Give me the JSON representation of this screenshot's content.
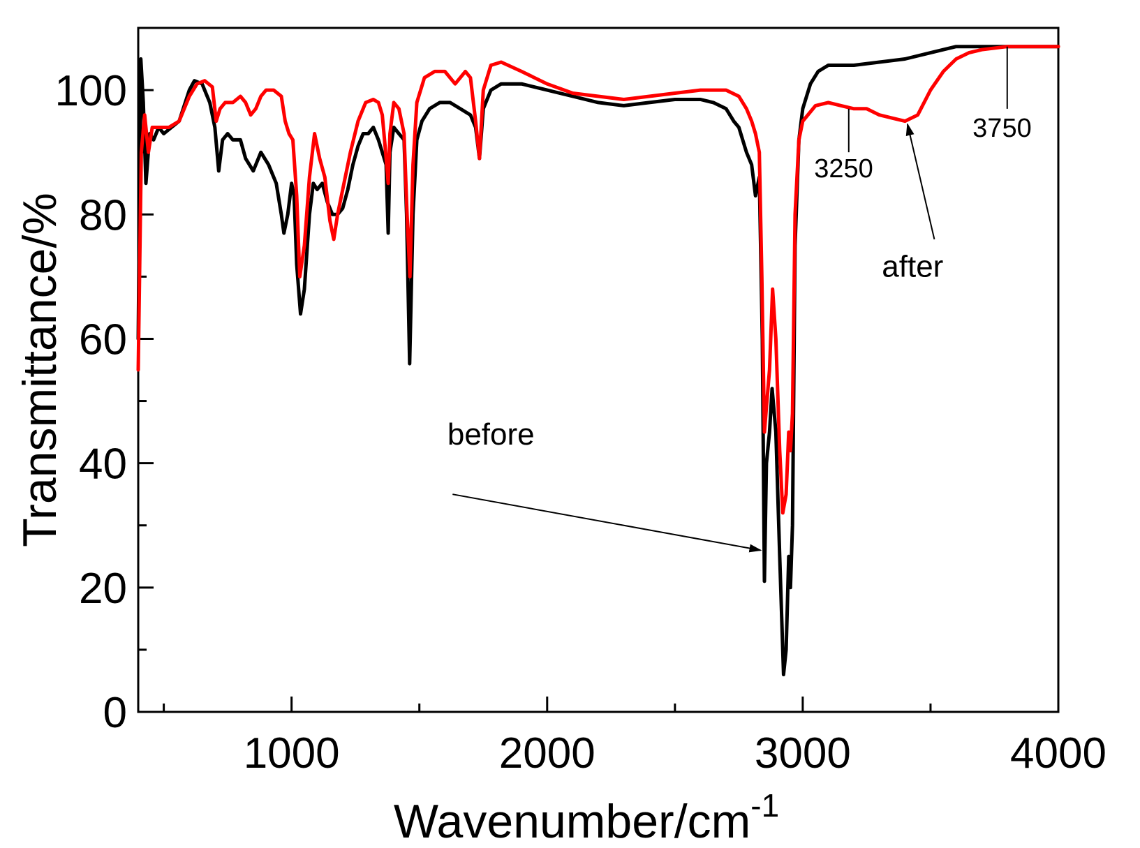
{
  "chart_data": {
    "type": "line",
    "xlabel": "Wavenumber/cm",
    "xlabel_superscript": "-1",
    "ylabel": "Transmittance/%",
    "xlim": [
      400,
      4000
    ],
    "ylim": [
      0,
      110
    ],
    "x_ticks": [
      1000,
      2000,
      3000,
      4000
    ],
    "y_ticks": [
      0,
      20,
      40,
      60,
      80,
      100
    ],
    "grid": false,
    "series": [
      {
        "name": "before",
        "color": "#000000",
        "points": [
          [
            400,
            60
          ],
          [
            410,
            105
          ],
          [
            420,
            98
          ],
          [
            430,
            85
          ],
          [
            445,
            93
          ],
          [
            460,
            92
          ],
          [
            480,
            94
          ],
          [
            500,
            93
          ],
          [
            530,
            94
          ],
          [
            560,
            95
          ],
          [
            600,
            100
          ],
          [
            620,
            101.5
          ],
          [
            650,
            101
          ],
          [
            680,
            98
          ],
          [
            700,
            94
          ],
          [
            715,
            87
          ],
          [
            730,
            92
          ],
          [
            750,
            93
          ],
          [
            770,
            92
          ],
          [
            800,
            92
          ],
          [
            820,
            89
          ],
          [
            850,
            87
          ],
          [
            880,
            90
          ],
          [
            910,
            88
          ],
          [
            940,
            85
          ],
          [
            960,
            80
          ],
          [
            970,
            77
          ],
          [
            985,
            80
          ],
          [
            1000,
            85
          ],
          [
            1010,
            83
          ],
          [
            1020,
            72
          ],
          [
            1035,
            64
          ],
          [
            1050,
            68
          ],
          [
            1070,
            80
          ],
          [
            1085,
            85
          ],
          [
            1100,
            84
          ],
          [
            1120,
            85
          ],
          [
            1140,
            82
          ],
          [
            1160,
            80
          ],
          [
            1180,
            80
          ],
          [
            1200,
            81
          ],
          [
            1220,
            84
          ],
          [
            1240,
            88
          ],
          [
            1260,
            91
          ],
          [
            1280,
            93
          ],
          [
            1300,
            93
          ],
          [
            1320,
            94
          ],
          [
            1340,
            92
          ],
          [
            1355,
            90
          ],
          [
            1370,
            88
          ],
          [
            1378,
            77
          ],
          [
            1385,
            90
          ],
          [
            1400,
            94
          ],
          [
            1420,
            93
          ],
          [
            1440,
            92
          ],
          [
            1450,
            80
          ],
          [
            1462,
            56
          ],
          [
            1475,
            80
          ],
          [
            1490,
            92
          ],
          [
            1510,
            95
          ],
          [
            1540,
            97
          ],
          [
            1580,
            98
          ],
          [
            1620,
            98
          ],
          [
            1660,
            97
          ],
          [
            1700,
            96
          ],
          [
            1720,
            94
          ],
          [
            1735,
            89
          ],
          [
            1750,
            97
          ],
          [
            1780,
            100
          ],
          [
            1820,
            101
          ],
          [
            1900,
            101
          ],
          [
            2000,
            100
          ],
          [
            2100,
            99
          ],
          [
            2200,
            98
          ],
          [
            2300,
            97.5
          ],
          [
            2400,
            98
          ],
          [
            2500,
            98.5
          ],
          [
            2600,
            98.5
          ],
          [
            2650,
            98
          ],
          [
            2700,
            97
          ],
          [
            2730,
            95
          ],
          [
            2750,
            94
          ],
          [
            2780,
            90
          ],
          [
            2800,
            88
          ],
          [
            2815,
            83
          ],
          [
            2830,
            86
          ],
          [
            2842,
            60
          ],
          [
            2850,
            21
          ],
          [
            2858,
            40
          ],
          [
            2870,
            45
          ],
          [
            2880,
            52
          ],
          [
            2895,
            45
          ],
          [
            2910,
            25
          ],
          [
            2925,
            6
          ],
          [
            2935,
            10
          ],
          [
            2945,
            25
          ],
          [
            2952,
            20
          ],
          [
            2960,
            30
          ],
          [
            2970,
            75
          ],
          [
            2985,
            92
          ],
          [
            3000,
            97
          ],
          [
            3030,
            101
          ],
          [
            3060,
            103
          ],
          [
            3100,
            104
          ],
          [
            3150,
            104
          ],
          [
            3200,
            104
          ],
          [
            3300,
            104.5
          ],
          [
            3400,
            105
          ],
          [
            3500,
            106
          ],
          [
            3600,
            107
          ],
          [
            3700,
            107
          ],
          [
            3800,
            107
          ],
          [
            3900,
            107
          ],
          [
            4000,
            107
          ]
        ]
      },
      {
        "name": "after",
        "color": "#ff0000",
        "points": [
          [
            400,
            55
          ],
          [
            412,
            90
          ],
          [
            425,
            96
          ],
          [
            440,
            90
          ],
          [
            455,
            94
          ],
          [
            480,
            94
          ],
          [
            520,
            94
          ],
          [
            560,
            95
          ],
          [
            600,
            99
          ],
          [
            630,
            101
          ],
          [
            660,
            101.5
          ],
          [
            690,
            100.5
          ],
          [
            705,
            95
          ],
          [
            720,
            97
          ],
          [
            740,
            98
          ],
          [
            770,
            98
          ],
          [
            800,
            99
          ],
          [
            820,
            98
          ],
          [
            840,
            96
          ],
          [
            860,
            97
          ],
          [
            880,
            99
          ],
          [
            900,
            100
          ],
          [
            930,
            100
          ],
          [
            960,
            99
          ],
          [
            975,
            95
          ],
          [
            990,
            93
          ],
          [
            1005,
            92
          ],
          [
            1020,
            83
          ],
          [
            1032,
            70
          ],
          [
            1050,
            75
          ],
          [
            1070,
            86
          ],
          [
            1090,
            93
          ],
          [
            1110,
            89
          ],
          [
            1130,
            86
          ],
          [
            1150,
            79
          ],
          [
            1165,
            76
          ],
          [
            1180,
            80
          ],
          [
            1200,
            84
          ],
          [
            1230,
            90
          ],
          [
            1260,
            95
          ],
          [
            1290,
            98
          ],
          [
            1320,
            98.5
          ],
          [
            1340,
            98
          ],
          [
            1355,
            96
          ],
          [
            1368,
            90
          ],
          [
            1378,
            85
          ],
          [
            1385,
            93
          ],
          [
            1400,
            98
          ],
          [
            1420,
            97
          ],
          [
            1440,
            93
          ],
          [
            1452,
            80
          ],
          [
            1463,
            70
          ],
          [
            1475,
            88
          ],
          [
            1490,
            98
          ],
          [
            1520,
            102
          ],
          [
            1560,
            103
          ],
          [
            1600,
            103
          ],
          [
            1640,
            101
          ],
          [
            1680,
            103
          ],
          [
            1700,
            102
          ],
          [
            1720,
            95
          ],
          [
            1735,
            89
          ],
          [
            1750,
            100
          ],
          [
            1780,
            104
          ],
          [
            1820,
            104.5
          ],
          [
            1900,
            103
          ],
          [
            2000,
            101
          ],
          [
            2100,
            99.5
          ],
          [
            2200,
            99
          ],
          [
            2300,
            98.5
          ],
          [
            2400,
            99
          ],
          [
            2500,
            99.5
          ],
          [
            2600,
            100
          ],
          [
            2700,
            100
          ],
          [
            2750,
            99
          ],
          [
            2780,
            97
          ],
          [
            2800,
            95
          ],
          [
            2815,
            93
          ],
          [
            2830,
            90
          ],
          [
            2840,
            70
          ],
          [
            2850,
            45
          ],
          [
            2860,
            50
          ],
          [
            2870,
            55
          ],
          [
            2882,
            68
          ],
          [
            2895,
            60
          ],
          [
            2910,
            42
          ],
          [
            2922,
            32
          ],
          [
            2935,
            35
          ],
          [
            2945,
            45
          ],
          [
            2952,
            42
          ],
          [
            2960,
            48
          ],
          [
            2970,
            80
          ],
          [
            2985,
            92
          ],
          [
            3000,
            95
          ],
          [
            3050,
            97.5
          ],
          [
            3100,
            98
          ],
          [
            3150,
            97.5
          ],
          [
            3200,
            97
          ],
          [
            3250,
            97
          ],
          [
            3300,
            96
          ],
          [
            3350,
            95.5
          ],
          [
            3400,
            95
          ],
          [
            3450,
            96
          ],
          [
            3500,
            100
          ],
          [
            3550,
            103
          ],
          [
            3600,
            105
          ],
          [
            3650,
            106
          ],
          [
            3700,
            106.5
          ],
          [
            3800,
            107
          ],
          [
            3900,
            107
          ],
          [
            4000,
            107
          ]
        ]
      }
    ],
    "annotations": [
      {
        "text": "before",
        "type": "arrow",
        "label_at": [
          1780,
          43
        ],
        "from": [
          1630,
          35
        ],
        "to": [
          2835,
          26
        ],
        "font_size": 44
      },
      {
        "text": "after",
        "type": "arrow",
        "label_at": [
          3430,
          70
        ],
        "from": [
          3515,
          76
        ],
        "to": [
          3410,
          94.5
        ],
        "font_size": 44
      },
      {
        "text": "3250",
        "type": "marker",
        "label_at": [
          3160,
          86
        ],
        "line_from": [
          3180,
          97
        ],
        "line_to": [
          3180,
          90
        ],
        "font_size": 38
      },
      {
        "text": "3750",
        "type": "marker",
        "label_at": [
          3780,
          92.5
        ],
        "line_from": [
          3800,
          107
        ],
        "line_to": [
          3800,
          97
        ],
        "font_size": 38
      }
    ]
  }
}
